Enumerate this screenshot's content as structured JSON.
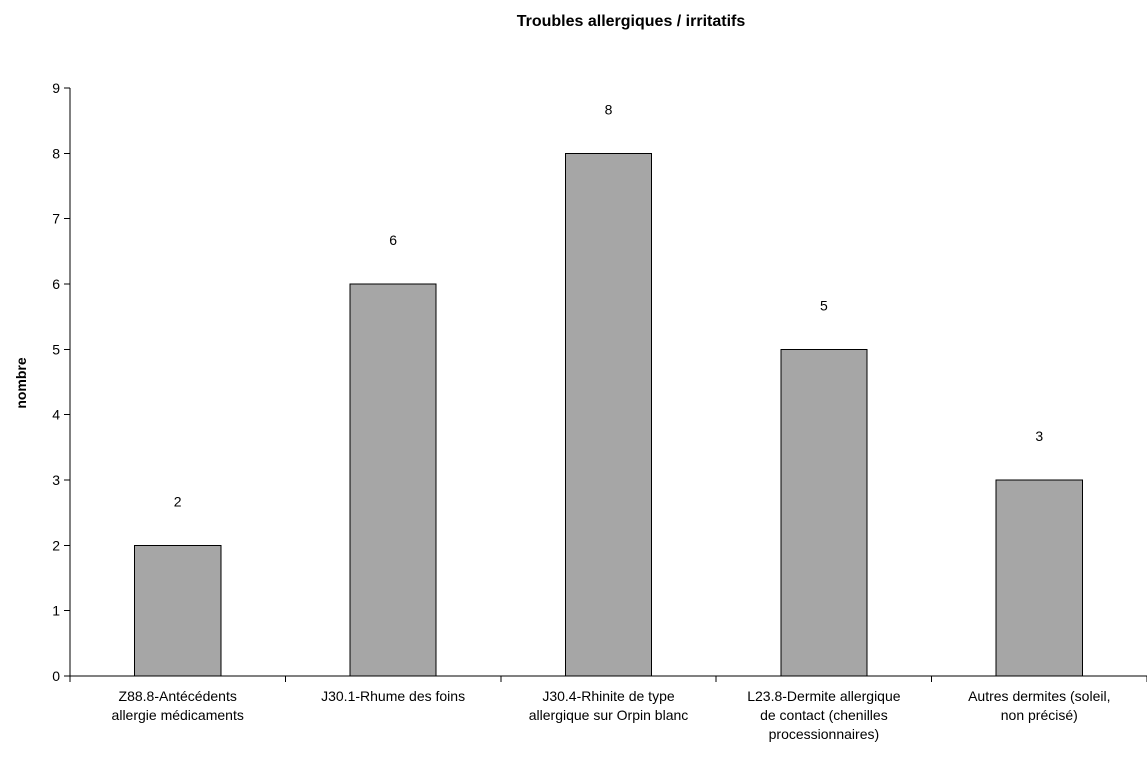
{
  "chart_data": {
    "type": "bar",
    "title": "Troubles allergiques / irritatifs",
    "xlabel": "",
    "ylabel": "nombre",
    "ylim": [
      0,
      9
    ],
    "yticks": [
      0,
      1,
      2,
      3,
      4,
      5,
      6,
      7,
      8,
      9
    ],
    "grid": false,
    "legend": "none",
    "bar_color": "#a6a6a6",
    "bar_edge_color": "#000000",
    "categories": [
      [
        "Z88.8-Antécédents",
        "allergie médicaments"
      ],
      [
        "J30.1-Rhume des foins"
      ],
      [
        "J30.4-Rhinite de type",
        "allergique sur Orpin blanc"
      ],
      [
        "L23.8-Dermite allergique",
        "de contact (chenilles",
        "processionnaires)"
      ],
      [
        "Autres dermites (soleil,",
        "non précisé)"
      ]
    ],
    "values": [
      2,
      6,
      8,
      5,
      3
    ],
    "data_labels": [
      "2",
      "6",
      "8",
      "5",
      "3"
    ]
  }
}
